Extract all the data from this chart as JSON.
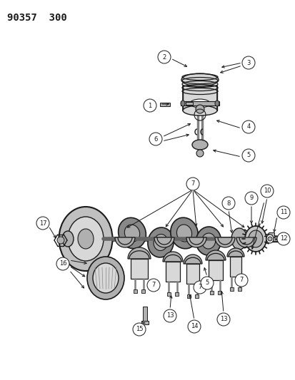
{
  "bg_color": "#ffffff",
  "title_text": "90357  300",
  "title_fontsize": 10,
  "fig_width": 4.14,
  "fig_height": 5.33,
  "dpi": 100,
  "line_color": "#1a1a1a",
  "gray_light": "#d8d8d8",
  "gray_mid": "#b0b0b0",
  "gray_dark": "#808080",
  "callout_r": 0.018,
  "callout_fontsize": 6.0
}
